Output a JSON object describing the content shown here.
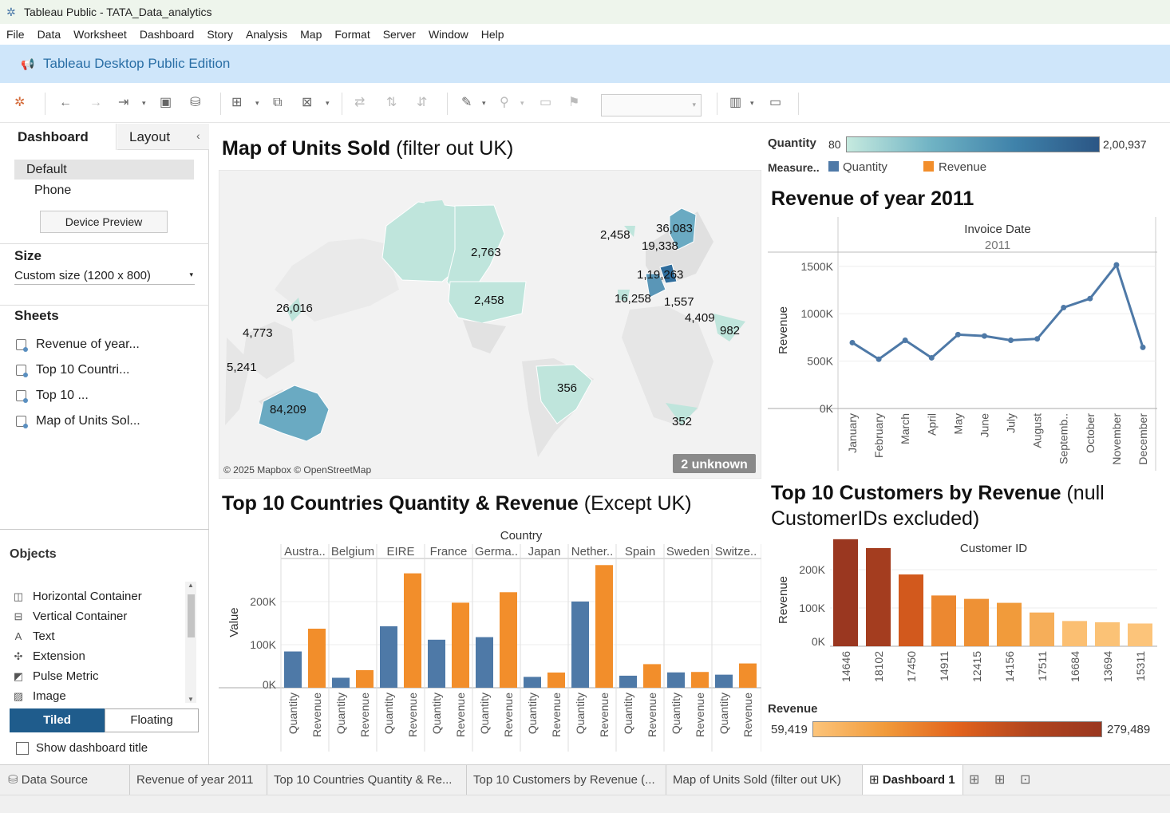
{
  "window": {
    "title": "Tableau Public - TATA_Data_analytics"
  },
  "menu": [
    "File",
    "Data",
    "Worksheet",
    "Dashboard",
    "Story",
    "Analysis",
    "Map",
    "Format",
    "Server",
    "Window",
    "Help"
  ],
  "banner": {
    "text": "Tableau Desktop Public Edition"
  },
  "left": {
    "tabs": {
      "dashboard": "Dashboard",
      "layout": "Layout"
    },
    "devices": {
      "default": "Default",
      "phone": "Phone",
      "preview": "Device Preview"
    },
    "size": {
      "label": "Size",
      "value": "Custom size (1200 x 800)"
    },
    "sheets_label": "Sheets",
    "sheets": [
      "Revenue of year...",
      "Top 10 Countri...",
      "Top 10 ...",
      "Map of Units Sol..."
    ],
    "objects_label": "Objects",
    "objects": [
      {
        "label": "Horizontal Container",
        "icon": "horizontal-container-icon"
      },
      {
        "label": "Vertical Container",
        "icon": "vertical-container-icon"
      },
      {
        "label": "Text",
        "icon": "text-icon"
      },
      {
        "label": "Extension",
        "icon": "extension-icon"
      },
      {
        "label": "Pulse Metric",
        "icon": "pulse-metric-icon"
      },
      {
        "label": "Image",
        "icon": "image-icon"
      }
    ],
    "tiled": "Tiled",
    "floating": "Floating",
    "show_title": "Show dashboard title"
  },
  "map": {
    "title": "Map of Units Sold",
    "title_note": "(filter out UK)",
    "credit": "© 2025 Mapbox © OpenStreetMap",
    "unknown": "2 unknown",
    "labels": [
      "2,763",
      "2,458",
      "26,016",
      "4,773",
      "5,241",
      "84,209",
      "356",
      "2,458",
      "36,083",
      "19,338",
      "1,19,263",
      "16,258",
      "1,557",
      "4,409",
      "982",
      "352"
    ]
  },
  "legend": {
    "quantity_label": "Quantity",
    "min": "80",
    "max": "2,00,937",
    "measure_label": "Measure..",
    "items": [
      "Quantity",
      "Revenue"
    ],
    "colors": {
      "quantity": "#4e79a7",
      "revenue": "#f28e2b"
    }
  },
  "chart_data": [
    {
      "type": "line",
      "title": "Revenue of year 2011",
      "column_header": "Invoice Date",
      "column_value": "2011",
      "ylabel": "Revenue",
      "categories": [
        "January",
        "February",
        "March",
        "April",
        "May",
        "June",
        "July",
        "August",
        "Septemb..",
        "October",
        "November",
        "December"
      ],
      "values": [
        695000,
        520000,
        720000,
        535000,
        780000,
        765000,
        720000,
        735000,
        1065000,
        1160000,
        1515000,
        645000
      ],
      "yticks": [
        "1500K",
        "1000K",
        "500K",
        "0K"
      ],
      "ylim": [
        0,
        1650000
      ]
    },
    {
      "type": "bar",
      "title": "Top 10 Countries Quantity & Revenue",
      "title_note": "(Except UK)",
      "column_header": "Country",
      "ylabel": "Value",
      "categories": [
        "Austra..",
        "Belgium",
        "EIRE",
        "France",
        "Germa..",
        "Japan",
        "Nether..",
        "Spain",
        "Sweden",
        "Switze.."
      ],
      "measures": [
        "Quantity",
        "Revenue"
      ],
      "series": [
        {
          "name": "Quantity",
          "values": [
            84209,
            23152,
            142637,
            111472,
            117448,
            25218,
            200128,
            27951,
            35637,
            30325
          ]
        },
        {
          "name": "Revenue",
          "values": [
            137077,
            40911,
            265546,
            197404,
            221698,
            35341,
            284662,
            54774,
            36595,
            56385
          ]
        }
      ],
      "yticks": [
        "200K",
        "100K",
        "0K"
      ],
      "ylim": [
        0,
        300000
      ]
    },
    {
      "type": "bar",
      "title": "Top 10 Customers by Revenue",
      "title_note": "(null CustomerIDs excluded)",
      "column_header": "Customer ID",
      "ylabel": "Revenue",
      "categories": [
        "14646",
        "18102",
        "17450",
        "14911",
        "12415",
        "14156",
        "17511",
        "16684",
        "13694",
        "15311"
      ],
      "values": [
        279489,
        256438,
        187482,
        132573,
        123725,
        113384,
        88125,
        65892,
        62653,
        59419
      ],
      "yticks": [
        "200K",
        "100K",
        "0K"
      ],
      "ylim": [
        0,
        300000
      ],
      "color_legend": {
        "label": "Revenue",
        "min": "59,419",
        "max": "279,489"
      }
    }
  ],
  "bottom_tabs": [
    "Data Source",
    "Revenue of year 2011",
    "Top 10 Countries Quantity & Re...",
    "Top 10 Customers by Revenue (...",
    "Map of Units Sold (filter out UK)",
    "Dashboard 1"
  ]
}
